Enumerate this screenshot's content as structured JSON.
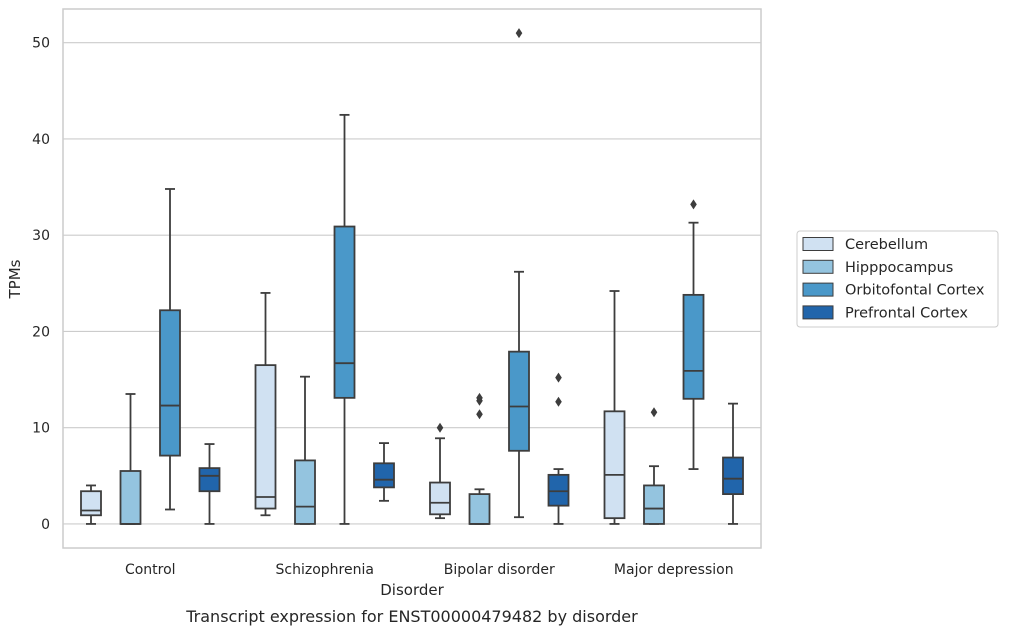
{
  "chart_data": {
    "type": "box",
    "caption": "Transcript expression for ENST00000479482 by disorder",
    "xlabel": "Disorder",
    "ylabel": "TPMs",
    "ylim": [
      -2.5,
      53.5
    ],
    "yticks": [
      0,
      10,
      20,
      30,
      40,
      50
    ],
    "grid": "horizontal",
    "legend_placement": "center-right",
    "categories": [
      "Control",
      "Schizophrenia",
      "Bipolar disorder",
      "Major depression"
    ],
    "series": [
      {
        "name": "Cerebellum",
        "color": "#d0e1f2",
        "boxes": [
          {
            "whislo": 0.0,
            "q1": 0.9,
            "med": 1.4,
            "q3": 3.4,
            "whishi": 4.0,
            "fliers": []
          },
          {
            "whislo": 0.9,
            "q1": 1.6,
            "med": 2.8,
            "q3": 16.5,
            "whishi": 24.0,
            "fliers": []
          },
          {
            "whislo": 0.6,
            "q1": 1.0,
            "med": 2.2,
            "q3": 4.3,
            "whishi": 8.9,
            "fliers": [
              10.0
            ]
          },
          {
            "whislo": 0.0,
            "q1": 0.6,
            "med": 5.1,
            "q3": 11.7,
            "whishi": 24.2,
            "fliers": []
          }
        ]
      },
      {
        "name": "Hipppocampus",
        "color": "#94c4df",
        "boxes": [
          {
            "whislo": 0.0,
            "q1": 0.0,
            "med": 0.0,
            "q3": 5.5,
            "whishi": 13.5,
            "fliers": []
          },
          {
            "whislo": 0.0,
            "q1": 0.0,
            "med": 1.8,
            "q3": 6.6,
            "whishi": 15.3,
            "fliers": []
          },
          {
            "whislo": 0.0,
            "q1": 0.0,
            "med": 0.0,
            "q3": 3.1,
            "whishi": 3.6,
            "fliers": [
              11.4,
              12.8,
              13.1
            ]
          },
          {
            "whislo": 0.0,
            "q1": 0.0,
            "med": 1.6,
            "q3": 4.0,
            "whishi": 6.0,
            "fliers": [
              11.6
            ]
          }
        ]
      },
      {
        "name": "Orbitofontal Cortex",
        "color": "#4a98c9",
        "boxes": [
          {
            "whislo": 1.5,
            "q1": 7.1,
            "med": 12.3,
            "q3": 22.2,
            "whishi": 34.8,
            "fliers": []
          },
          {
            "whislo": 0.0,
            "q1": 13.1,
            "med": 16.7,
            "q3": 30.9,
            "whishi": 42.5,
            "fliers": []
          },
          {
            "whislo": 0.7,
            "q1": 7.6,
            "med": 12.2,
            "q3": 17.9,
            "whishi": 26.2,
            "fliers": [
              51.0
            ]
          },
          {
            "whislo": 5.7,
            "q1": 13.0,
            "med": 15.9,
            "q3": 23.8,
            "whishi": 31.3,
            "fliers": [
              33.2
            ]
          }
        ]
      },
      {
        "name": "Prefrontal Cortex",
        "color": "#2165ab",
        "boxes": [
          {
            "whislo": 0.0,
            "q1": 3.4,
            "med": 5.0,
            "q3": 5.8,
            "whishi": 8.3,
            "fliers": []
          },
          {
            "whislo": 2.4,
            "q1": 3.8,
            "med": 4.6,
            "q3": 6.3,
            "whishi": 8.4,
            "fliers": []
          },
          {
            "whislo": 0.0,
            "q1": 1.9,
            "med": 3.4,
            "q3": 5.1,
            "whishi": 5.7,
            "fliers": [
              12.7,
              15.2
            ]
          },
          {
            "whislo": 0.0,
            "q1": 3.1,
            "med": 4.7,
            "q3": 6.9,
            "whishi": 12.5,
            "fliers": []
          }
        ]
      }
    ]
  }
}
